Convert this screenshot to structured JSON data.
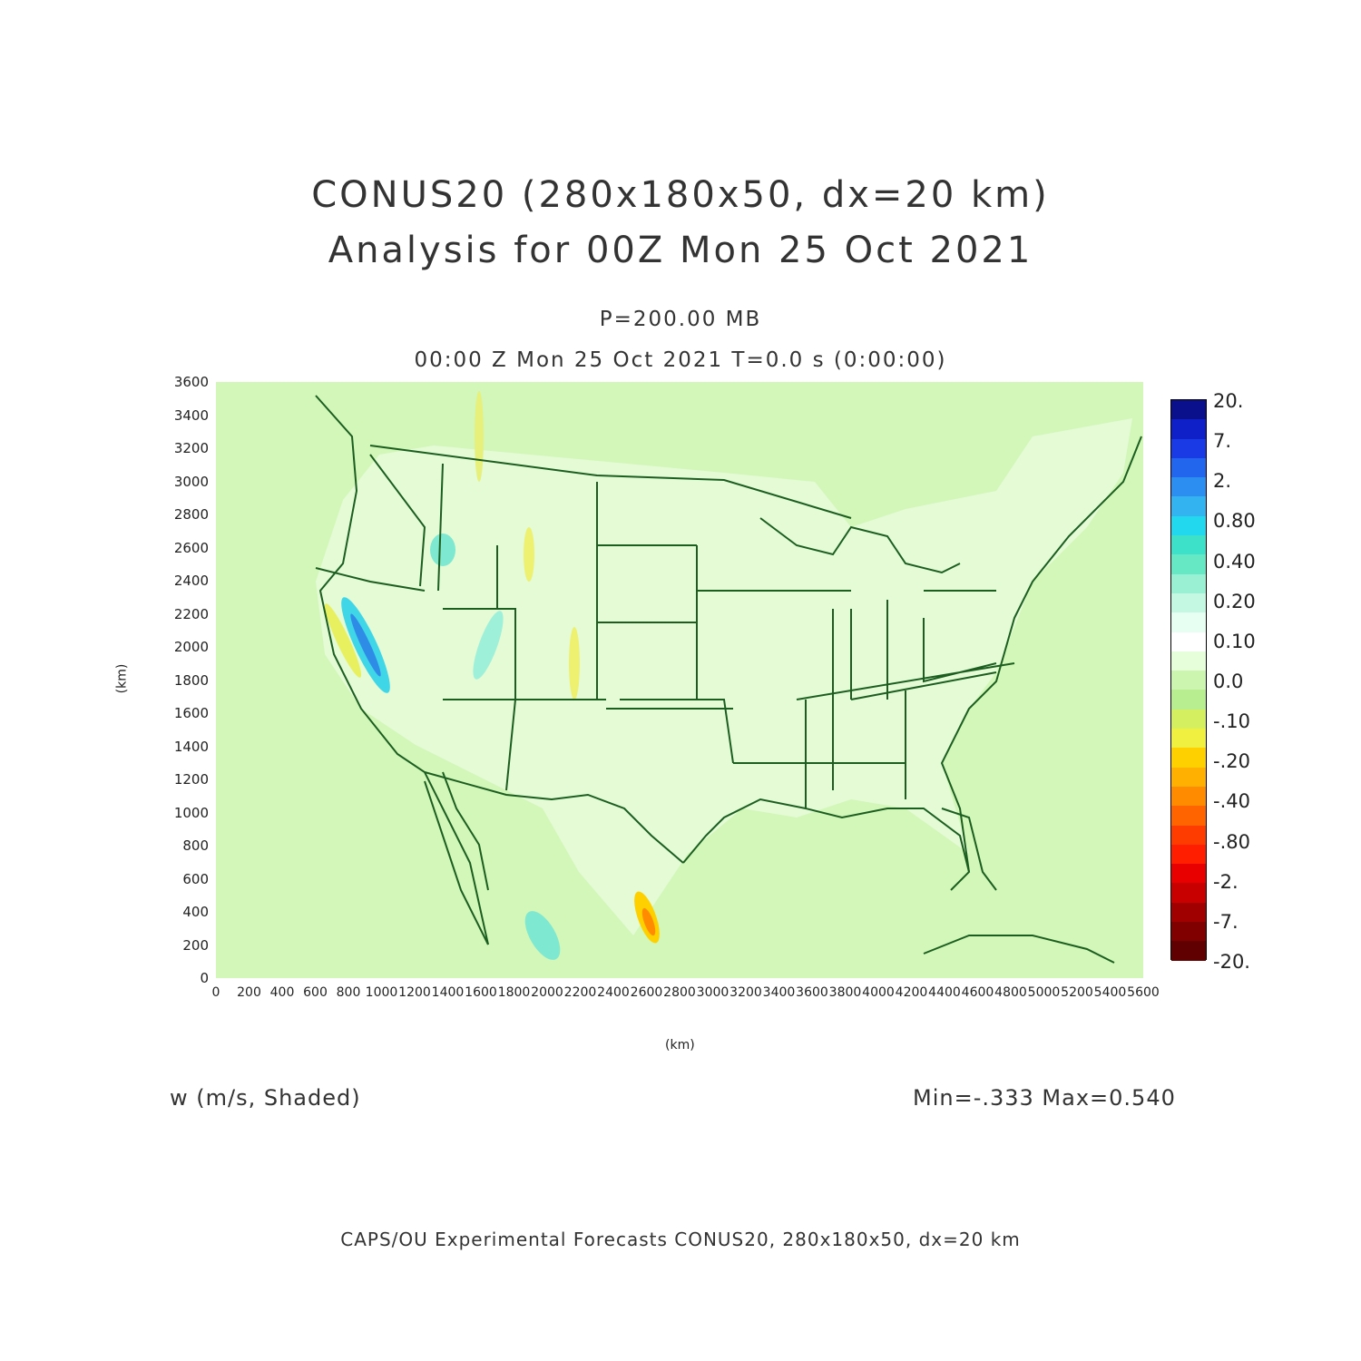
{
  "title": {
    "line1": "CONUS20 (280x180x50, dx=20 km)",
    "line2": "Analysis for 00Z Mon 25 Oct 2021"
  },
  "level": "P=200.00 MB",
  "time": "00:00 Z Mon 25 Oct 2021    T=0.0 s (0:00:00)",
  "axes": {
    "x_ticks": [
      "0",
      "200",
      "400",
      "600",
      "800",
      "1000",
      "1200",
      "1400",
      "1600",
      "1800",
      "2000",
      "2200",
      "2400",
      "2600",
      "2800",
      "3000",
      "3200",
      "3400",
      "3600",
      "3800",
      "4000",
      "4200",
      "4400",
      "4600",
      "4800",
      "5000",
      "5200",
      "5400",
      "5600"
    ],
    "y_ticks": [
      "0",
      "200",
      "400",
      "600",
      "800",
      "1000",
      "1200",
      "1400",
      "1600",
      "1800",
      "2000",
      "2200",
      "2400",
      "2600",
      "2800",
      "3000",
      "3200",
      "3400",
      "3600"
    ],
    "x_unit": "(km)",
    "y_unit": "(km)",
    "xlim": [
      0,
      5600
    ],
    "ylim": [
      0,
      3600
    ]
  },
  "colorbar": {
    "labels": [
      "20.",
      "7.",
      "2.",
      "0.80",
      "0.40",
      "0.20",
      "0.10",
      "0.0",
      "-.10",
      "-.20",
      "-.40",
      "-.80",
      "-2.",
      "-7.",
      "-20."
    ],
    "colors": [
      "#0a0f8c",
      "#1020c8",
      "#1a3ae6",
      "#2266ee",
      "#2c8ef0",
      "#33b4f0",
      "#22d8ee",
      "#3de0c8",
      "#66e8c4",
      "#99f0d2",
      "#c4f8e2",
      "#e6fff2",
      "#ffffff",
      "#e6ffda",
      "#ccf5b0",
      "#b8ee90",
      "#d4f060",
      "#f0f040",
      "#ffd000",
      "#ffb000",
      "#ff8c00",
      "#ff6400",
      "#ff3c00",
      "#ff1e00",
      "#e80000",
      "#c80000",
      "#a00000",
      "#800000",
      "#600000"
    ]
  },
  "field": {
    "name": "w (m/s, Shaded)",
    "stats": "Min=-.333 Max=0.540"
  },
  "footer": "CAPS/OU Experimental Forecasts  CONUS20, 280x180x50, dx=20 km"
}
